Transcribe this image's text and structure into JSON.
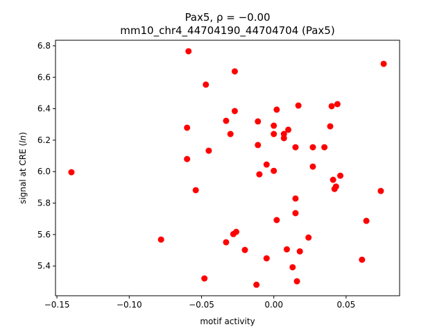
{
  "chart_data": {
    "type": "scatter",
    "title": "Pax5, ρ = −0.00",
    "subtitle": "mm10_chr4_44704190_44704704 (Pax5)",
    "xlabel": "motif activity",
    "ylabel": "signal at CRE (ln)",
    "xlim": [
      -0.151,
      0.087
    ],
    "ylim": [
      5.211,
      6.835
    ],
    "xticks": [
      -0.15,
      -0.1,
      -0.05,
      0.0,
      0.05
    ],
    "xtick_labels": [
      "−0.15",
      "−0.10",
      "−0.05",
      "0.00",
      "0.05"
    ],
    "yticks": [
      5.4,
      5.6,
      5.8,
      6.0,
      6.2,
      6.4,
      6.6,
      6.8
    ],
    "ytick_labels": [
      "5.4",
      "5.6",
      "5.8",
      "6.0",
      "6.2",
      "6.4",
      "6.6",
      "6.8"
    ],
    "grid": false,
    "marker_color": "#ff0000",
    "points": [
      [
        -0.059,
        6.765
      ],
      [
        0.076,
        6.685
      ],
      [
        -0.027,
        6.637
      ],
      [
        -0.047,
        6.553
      ],
      [
        0.044,
        6.429
      ],
      [
        0.017,
        6.42
      ],
      [
        0.002,
        6.394
      ],
      [
        0.04,
        6.416
      ],
      [
        -0.027,
        6.385
      ],
      [
        -0.033,
        6.323
      ],
      [
        -0.011,
        6.319
      ],
      [
        -0.06,
        6.279
      ],
      [
        0.0,
        6.292
      ],
      [
        0.039,
        6.288
      ],
      [
        0.01,
        6.266
      ],
      [
        -0.03,
        6.239
      ],
      [
        0.007,
        6.239
      ],
      [
        0.0,
        6.239
      ],
      [
        0.007,
        6.213
      ],
      [
        0.015,
        6.155
      ],
      [
        0.027,
        6.155
      ],
      [
        0.035,
        6.155
      ],
      [
        -0.011,
        6.169
      ],
      [
        -0.045,
        6.133
      ],
      [
        -0.06,
        6.08
      ],
      [
        -0.005,
        6.045
      ],
      [
        0.027,
        6.032
      ],
      [
        -0.14,
        5.996
      ],
      [
        0.0,
        6.005
      ],
      [
        -0.01,
        5.983
      ],
      [
        0.046,
        5.974
      ],
      [
        0.041,
        5.948
      ],
      [
        0.042,
        5.89
      ],
      [
        0.043,
        5.905
      ],
      [
        -0.054,
        5.882
      ],
      [
        0.074,
        5.877
      ],
      [
        0.015,
        5.829
      ],
      [
        0.015,
        5.736
      ],
      [
        0.002,
        5.692
      ],
      [
        0.064,
        5.687
      ],
      [
        -0.026,
        5.617
      ],
      [
        -0.028,
        5.603
      ],
      [
        -0.033,
        5.551
      ],
      [
        0.024,
        5.581
      ],
      [
        -0.078,
        5.568
      ],
      [
        -0.02,
        5.502
      ],
      [
        0.009,
        5.506
      ],
      [
        0.018,
        5.493
      ],
      [
        -0.005,
        5.449
      ],
      [
        0.061,
        5.44
      ],
      [
        0.013,
        5.392
      ],
      [
        -0.048,
        5.321
      ],
      [
        0.016,
        5.303
      ],
      [
        -0.012,
        5.281
      ]
    ]
  }
}
